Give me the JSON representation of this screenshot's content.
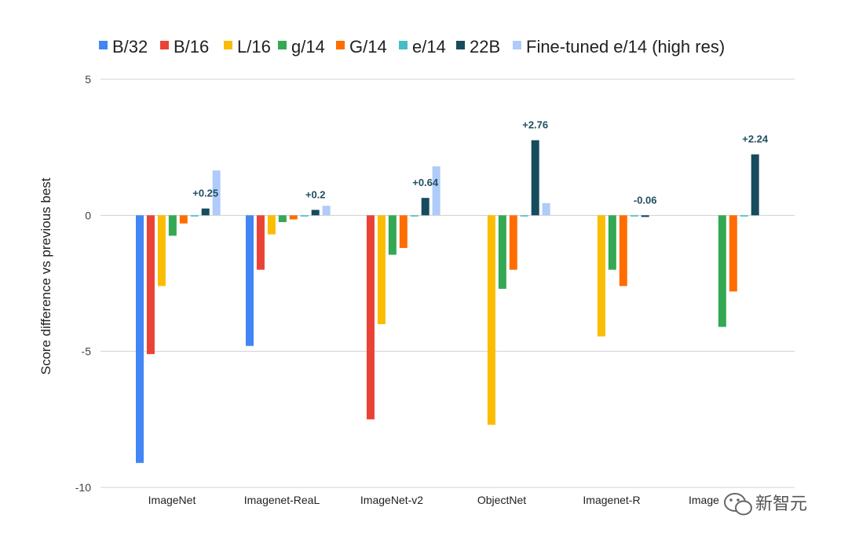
{
  "chart_data": {
    "type": "bar",
    "title": "",
    "xlabel": "",
    "ylabel": "Score difference vs previous best",
    "ylim": [
      -10,
      5
    ],
    "yticks": [
      5,
      0,
      -5,
      -10
    ],
    "grid": true,
    "legend_position": "top",
    "categories": [
      "ImageNet",
      "Imagenet-ReaL",
      "ImageNet-v2",
      "ObjectNet",
      "Imagenet-R",
      "Imagenet-A"
    ],
    "category_labels": [
      "ImageNet",
      "Imagenet-ReaL",
      "ImageNet-v2",
      "ObjectNet",
      "Imagenet-R",
      "Image"
    ],
    "series": [
      {
        "name": "B/32",
        "color": "#4285F4",
        "values": [
          -9.1,
          -4.8,
          null,
          null,
          null,
          null
        ]
      },
      {
        "name": "B/16",
        "color": "#EA4335",
        "values": [
          -5.1,
          -2.0,
          -7.5,
          null,
          null,
          null
        ]
      },
      {
        "name": "L/16",
        "color": "#FBBC04",
        "values": [
          -2.6,
          -0.7,
          -4.0,
          -7.7,
          -4.45,
          null
        ]
      },
      {
        "name": "g/14",
        "color": "#34A853",
        "values": [
          -0.75,
          -0.25,
          -1.45,
          -2.7,
          -2.0,
          -4.1
        ]
      },
      {
        "name": "G/14",
        "color": "#FF6D01",
        "values": [
          -0.3,
          -0.15,
          -1.2,
          -2.0,
          -2.6,
          -2.8
        ]
      },
      {
        "name": "e/14",
        "color": "#46BDC6",
        "values": [
          0,
          0,
          0,
          0,
          0,
          0
        ]
      },
      {
        "name": "22B",
        "color": "#174B5E",
        "values": [
          0.25,
          0.2,
          0.64,
          2.76,
          -0.06,
          2.24
        ]
      },
      {
        "name": "Fine-tuned e/14 (high res)",
        "color": "#AECBFA",
        "values": [
          1.65,
          0.35,
          1.8,
          0.45,
          null,
          null
        ]
      }
    ],
    "annotations": [
      {
        "category": "ImageNet",
        "series": "22B",
        "text": "+0.25"
      },
      {
        "category": "Imagenet-ReaL",
        "series": "22B",
        "text": "+0.2"
      },
      {
        "category": "ImageNet-v2",
        "series": "22B",
        "text": "+0.64"
      },
      {
        "category": "ObjectNet",
        "series": "22B",
        "text": "+2.76"
      },
      {
        "category": "Imagenet-R",
        "series": "22B",
        "text": "-0.06"
      },
      {
        "category": "Imagenet-A",
        "series": "22B",
        "text": "+2.24"
      }
    ]
  },
  "watermark": {
    "text": "新智元",
    "icon": "wechat-icon"
  }
}
